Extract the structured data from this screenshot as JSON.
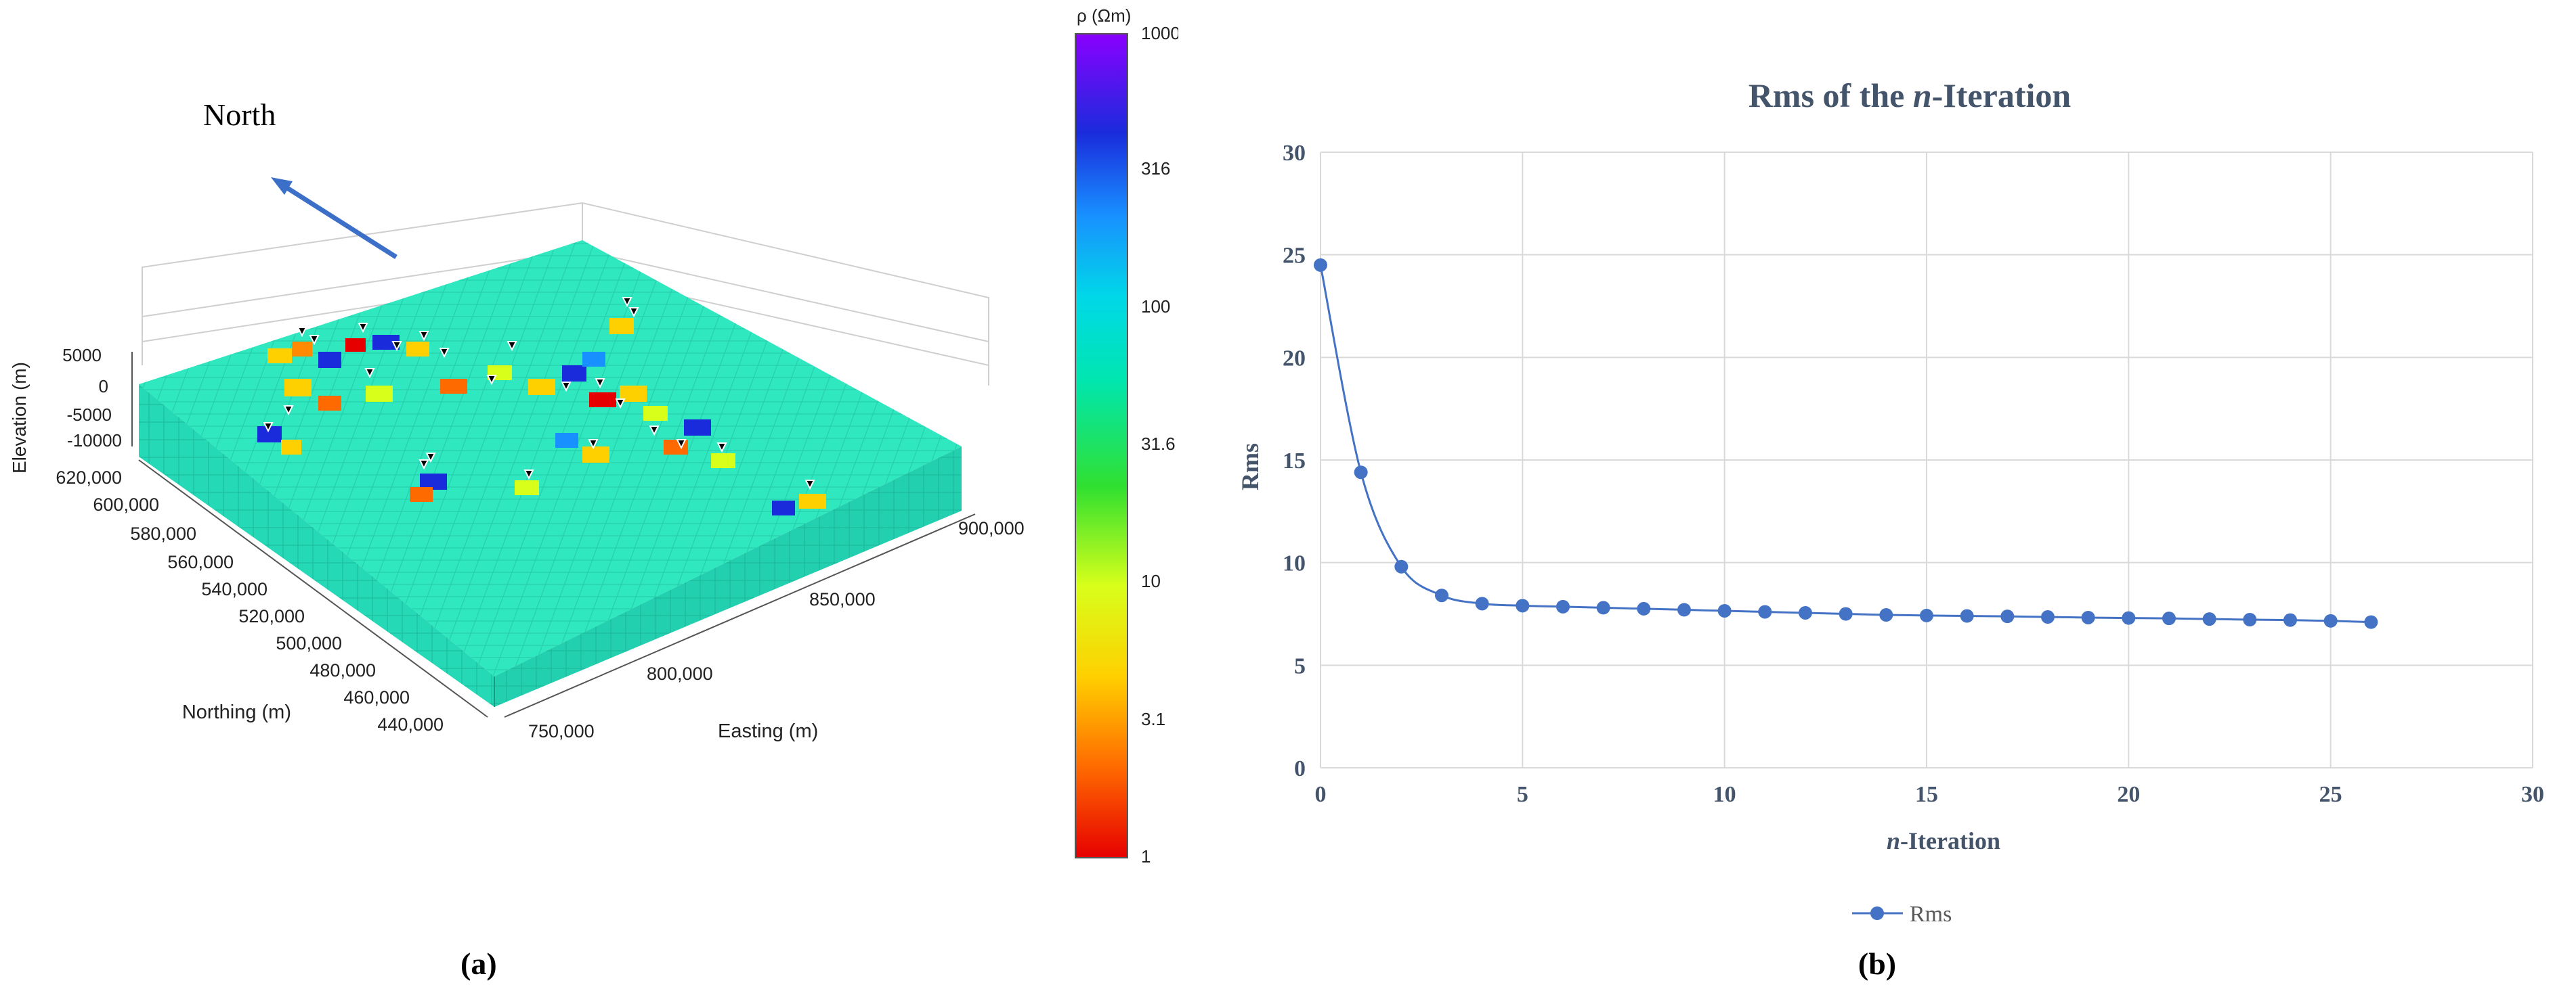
{
  "panel_a": {
    "north_label": "North",
    "zlabel": "Elevation (m)",
    "ylabel": "Northing (m)",
    "xlabel": "Easting (m)",
    "zticks": [
      "5000",
      "0",
      "-5000",
      "-10000"
    ],
    "yticks": [
      "620,000",
      "600,000",
      "580,000",
      "560,000",
      "540,000",
      "520,000",
      "500,000",
      "480,000",
      "460,000",
      "440,000"
    ],
    "xticks": [
      "750,000",
      "800,000",
      "850,000",
      "900,000"
    ],
    "colorbar": {
      "title": "ρ (Ωm)",
      "ticks": [
        "1000",
        "316",
        "100",
        "31.6",
        "10",
        "3.1",
        "1"
      ],
      "colors": [
        "#e60000",
        "#ff6a00",
        "#ffd000",
        "#d8ff1a",
        "#30e030",
        "#00e6b0",
        "#00d8e8",
        "#1890ff",
        "#1a2bdc",
        "#8a00ff"
      ]
    },
    "caption": "(a)"
  },
  "chart_data": {
    "type": "line",
    "title_pre": "Rms of the ",
    "title_em": "n",
    "title_post": "-Iteration",
    "xlabel_em": "n",
    "xlabel_post": "-Iteration",
    "ylabel": "Rms",
    "xlim": [
      0,
      30
    ],
    "ylim": [
      0,
      30
    ],
    "xticks": [
      0,
      5,
      10,
      15,
      20,
      25,
      30
    ],
    "yticks": [
      0,
      5,
      10,
      15,
      20,
      25,
      30
    ],
    "grid": true,
    "legend_position": "bottom",
    "series": [
      {
        "name": "Rms",
        "color": "#4472c4",
        "x": [
          0,
          1,
          2,
          3,
          4,
          5,
          6,
          7,
          8,
          9,
          10,
          11,
          12,
          13,
          14,
          15,
          16,
          17,
          18,
          19,
          20,
          21,
          22,
          23,
          24,
          25,
          26
        ],
        "y": [
          24.5,
          14.4,
          9.8,
          8.4,
          8.0,
          7.9,
          7.85,
          7.8,
          7.75,
          7.7,
          7.65,
          7.6,
          7.55,
          7.5,
          7.45,
          7.42,
          7.4,
          7.38,
          7.35,
          7.32,
          7.3,
          7.28,
          7.25,
          7.22,
          7.2,
          7.16,
          7.1
        ]
      }
    ],
    "caption": "(b)"
  }
}
